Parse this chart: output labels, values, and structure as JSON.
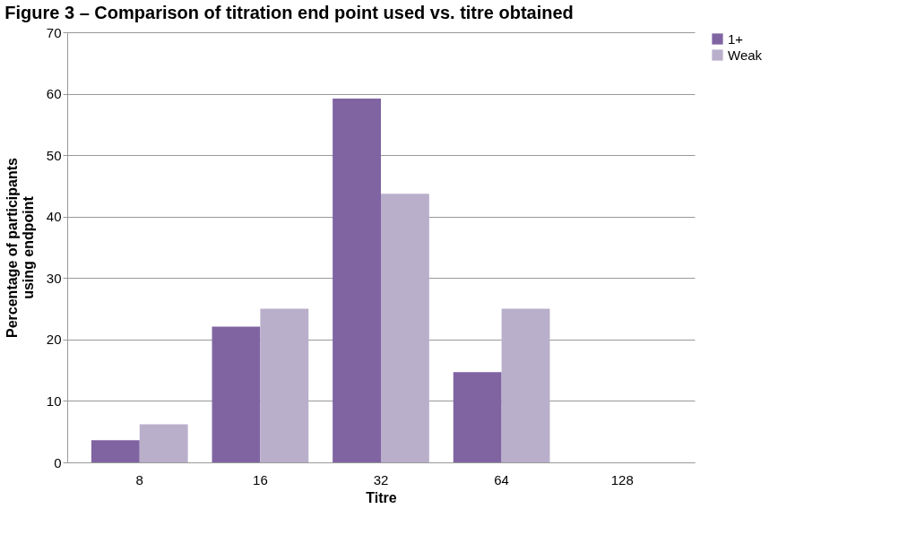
{
  "chart_data": {
    "type": "bar",
    "title": "Figure 3 – Comparison of titration end point used vs. titre obtained",
    "xlabel": "Titre",
    "ylabel": "Percentage of participants using endpoint",
    "categories": [
      "8",
      "16",
      "32",
      "64",
      "128"
    ],
    "series": [
      {
        "name": "1+",
        "color": "#8064a2",
        "values": [
          3.6,
          22.1,
          59.2,
          14.7,
          0
        ]
      },
      {
        "name": "Weak",
        "color": "#b9afcb",
        "values": [
          6.2,
          25,
          43.7,
          25,
          0
        ]
      }
    ],
    "ylim": [
      0,
      70
    ],
    "yticks": [
      0,
      10,
      20,
      30,
      40,
      50,
      60,
      70
    ],
    "grid": "y",
    "legend": "right"
  }
}
